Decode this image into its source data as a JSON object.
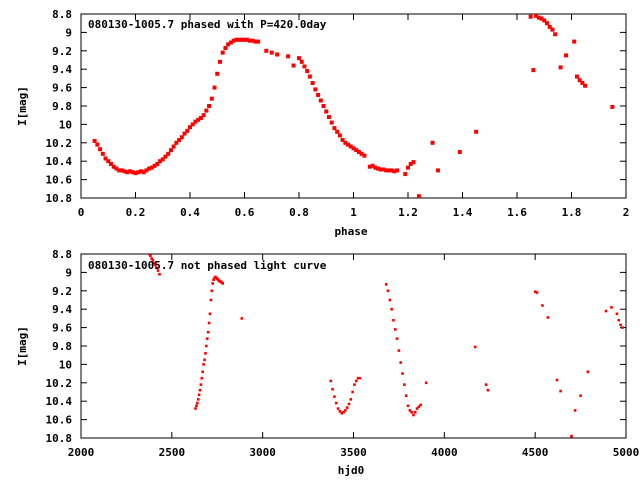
{
  "chart_data": [
    {
      "type": "scatter",
      "title": "080130-1005.7 phased with P=420.0day",
      "xlabel": "phase",
      "ylabel": "I[mag]",
      "xlim": [
        0,
        2
      ],
      "ylim": [
        10.8,
        8.8
      ],
      "y_inverted": true,
      "grid": false,
      "marker_color": "#ff0000",
      "x_ticks": [
        "0",
        "0.2",
        "0.4",
        "0.6",
        "0.8",
        "1",
        "1.2",
        "1.4",
        "1.6",
        "1.8",
        "2"
      ],
      "y_ticks": [
        "8.8",
        "9",
        "9.2",
        "9.4",
        "9.6",
        "9.8",
        "10",
        "10.2",
        "10.4",
        "10.6",
        "10.8"
      ],
      "x_tick_values": [
        0,
        0.2,
        0.4,
        0.6,
        0.8,
        1.0,
        1.2,
        1.4,
        1.6,
        1.8,
        2.0
      ],
      "y_tick_values": [
        8.8,
        9.0,
        9.2,
        9.4,
        9.6,
        9.8,
        10.0,
        10.2,
        10.4,
        10.6,
        10.8
      ],
      "marker_size": 4,
      "series": [
        {
          "x": [
            0.05,
            0.06,
            0.07,
            0.08,
            0.09,
            0.1,
            0.11,
            0.12,
            0.13,
            0.14,
            0.15,
            0.16,
            0.17,
            0.18,
            0.19,
            0.2,
            0.21,
            0.22,
            0.23,
            0.24,
            0.25,
            0.26,
            0.27,
            0.28,
            0.29,
            0.3,
            0.31,
            0.32,
            0.33,
            0.34,
            0.35,
            0.36,
            0.37,
            0.38,
            0.39,
            0.4,
            0.41,
            0.42,
            0.43,
            0.44,
            0.45,
            0.46,
            0.47,
            0.48,
            0.49,
            0.5,
            0.51,
            0.52,
            0.53,
            0.54,
            0.55,
            0.56,
            0.57,
            0.58,
            0.59,
            0.6,
            0.61,
            0.62,
            0.63,
            0.64,
            0.65,
            0.68,
            0.7,
            0.72,
            0.76,
            0.78,
            0.8,
            0.81,
            0.82,
            0.83,
            0.84,
            0.85,
            0.86,
            0.87,
            0.88,
            0.89,
            0.9,
            0.91,
            0.92,
            0.93,
            0.94,
            0.95,
            0.96,
            0.97,
            0.98,
            0.99,
            1.0,
            1.01,
            1.02,
            1.03,
            1.04,
            1.06,
            1.07,
            1.08,
            1.09,
            1.1,
            1.11,
            1.12,
            1.13,
            1.14,
            1.15,
            1.16,
            1.19,
            1.2,
            1.21,
            1.22,
            1.24,
            1.29,
            1.31,
            1.39,
            1.45,
            1.65,
            1.66,
            1.67,
            1.68,
            1.69,
            1.7,
            1.71,
            1.72,
            1.73,
            1.74,
            1.76,
            1.78,
            1.81,
            1.82,
            1.83,
            1.84,
            1.85,
            1.95
          ],
          "y": [
            10.18,
            10.22,
            10.27,
            10.32,
            10.37,
            10.4,
            10.43,
            10.46,
            10.48,
            10.5,
            10.5,
            10.51,
            10.52,
            10.51,
            10.52,
            10.53,
            10.52,
            10.51,
            10.52,
            10.5,
            10.48,
            10.47,
            10.45,
            10.43,
            10.4,
            10.38,
            10.35,
            10.32,
            10.28,
            10.24,
            10.2,
            10.17,
            10.14,
            10.1,
            10.07,
            10.03,
            10.0,
            9.97,
            9.95,
            9.93,
            9.9,
            9.85,
            9.8,
            9.72,
            9.6,
            9.45,
            9.32,
            9.22,
            9.17,
            9.13,
            9.11,
            9.09,
            9.08,
            9.08,
            9.08,
            9.08,
            9.08,
            9.09,
            9.09,
            9.1,
            9.1,
            9.2,
            9.22,
            9.24,
            9.26,
            9.36,
            9.28,
            9.32,
            9.37,
            9.42,
            9.48,
            9.55,
            9.62,
            9.68,
            9.74,
            9.8,
            9.86,
            9.92,
            9.98,
            10.04,
            10.08,
            10.12,
            10.17,
            10.2,
            10.22,
            10.24,
            10.26,
            10.28,
            10.3,
            10.32,
            10.34,
            10.46,
            10.45,
            10.47,
            10.48,
            10.49,
            10.49,
            10.5,
            10.5,
            10.5,
            10.51,
            10.5,
            10.54,
            10.47,
            10.43,
            10.41,
            10.78,
            10.2,
            10.5,
            10.3,
            10.08,
            8.83,
            9.41,
            8.82,
            8.84,
            8.85,
            8.87,
            8.9,
            8.94,
            8.97,
            9.02,
            9.38,
            9.25,
            9.1,
            9.48,
            9.52,
            9.55,
            9.58,
            9.81
          ]
        }
      ]
    },
    {
      "type": "scatter",
      "title": "080130-1005.7 not phased light curve",
      "xlabel": "hjd0",
      "ylabel": "I[mag]",
      "xlim": [
        2000,
        5000
      ],
      "ylim": [
        10.8,
        8.8
      ],
      "y_inverted": true,
      "grid": false,
      "marker_color": "#ff0000",
      "x_ticks": [
        "2000",
        "2500",
        "3000",
        "3500",
        "4000",
        "4500",
        "5000"
      ],
      "y_ticks": [
        "8.8",
        "9",
        "9.2",
        "9.4",
        "9.6",
        "9.8",
        "10",
        "10.2",
        "10.4",
        "10.6",
        "10.8"
      ],
      "x_tick_values": [
        2000,
        2500,
        3000,
        3500,
        4000,
        4500,
        5000
      ],
      "y_tick_values": [
        8.8,
        9.0,
        9.2,
        9.4,
        9.6,
        9.8,
        10.0,
        10.2,
        10.4,
        10.6,
        10.8
      ],
      "marker_size": 2.6,
      "series": [
        {
          "x": [
            2375,
            2382,
            2389,
            2396,
            2403,
            2410,
            2417,
            2424,
            2432,
            2630,
            2635,
            2640,
            2645,
            2650,
            2655,
            2660,
            2665,
            2670,
            2675,
            2680,
            2685,
            2690,
            2695,
            2700,
            2705,
            2710,
            2715,
            2720,
            2725,
            2730,
            2735,
            2740,
            2745,
            2750,
            2755,
            2760,
            2765,
            2770,
            2775,
            2780,
            2885,
            3375,
            3385,
            3395,
            3405,
            3415,
            3425,
            3435,
            3445,
            3455,
            3465,
            3475,
            3485,
            3495,
            3505,
            3515,
            3525,
            3535,
            3680,
            3690,
            3700,
            3710,
            3720,
            3730,
            3740,
            3750,
            3760,
            3770,
            3780,
            3790,
            3800,
            3810,
            3820,
            3830,
            3840,
            3850,
            3860,
            3870,
            3900,
            4170,
            4230,
            4240,
            4500,
            4510,
            4540,
            4570,
            4620,
            4640,
            4700,
            4720,
            4750,
            4790,
            4890,
            4920,
            4950,
            4960,
            4970,
            4980
          ],
          "y": [
            8.8,
            8.82,
            8.85,
            8.87,
            8.9,
            8.92,
            8.95,
            8.98,
            9.02,
            10.48,
            10.45,
            10.42,
            10.38,
            10.33,
            10.28,
            10.22,
            10.15,
            10.08,
            10.0,
            9.95,
            9.88,
            9.8,
            9.72,
            9.65,
            9.55,
            9.45,
            9.3,
            9.2,
            9.12,
            9.08,
            9.06,
            9.05,
            9.06,
            9.07,
            9.08,
            9.09,
            9.1,
            9.1,
            9.11,
            9.12,
            9.5,
            10.18,
            10.27,
            10.35,
            10.42,
            10.48,
            10.51,
            10.53,
            10.52,
            10.5,
            10.47,
            10.43,
            10.38,
            10.3,
            10.22,
            10.18,
            10.15,
            10.15,
            9.13,
            9.2,
            9.3,
            9.4,
            9.52,
            9.62,
            9.72,
            9.85,
            9.98,
            10.1,
            10.22,
            10.34,
            10.45,
            10.5,
            10.52,
            10.55,
            10.52,
            10.48,
            10.46,
            10.44,
            10.2,
            9.81,
            10.22,
            10.28,
            9.21,
            9.22,
            9.36,
            9.49,
            10.17,
            10.29,
            10.78,
            10.5,
            10.34,
            10.08,
            9.42,
            9.38,
            9.45,
            9.52,
            9.57,
            9.6
          ]
        }
      ]
    }
  ]
}
